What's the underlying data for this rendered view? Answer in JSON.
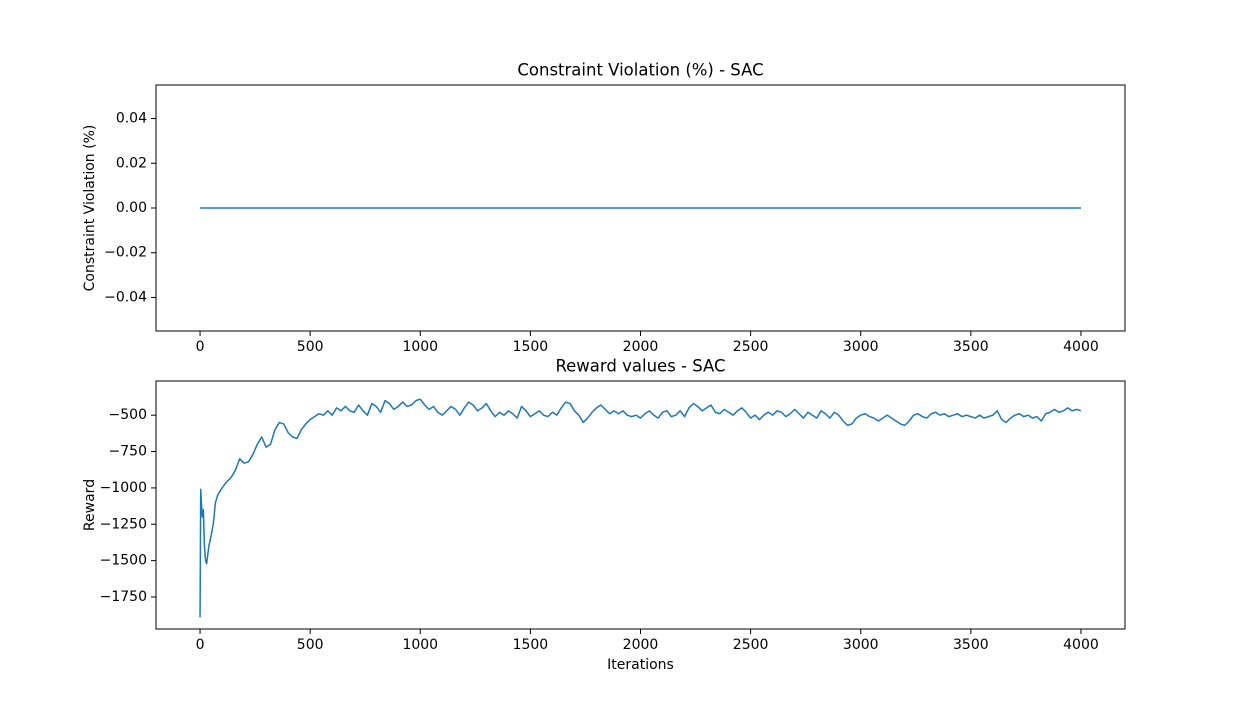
{
  "chart_data": [
    {
      "type": "line",
      "title": "Constraint Violation (%) - SAC",
      "ylabel": "Constraint Violation (%)",
      "x": [
        0,
        4000
      ],
      "values": [
        0,
        0
      ],
      "color": "#1f77b4",
      "xlim": [
        -200,
        4200
      ],
      "ylim": [
        -0.055,
        0.055
      ],
      "xticks": [
        0,
        500,
        1000,
        1500,
        2000,
        2500,
        3000,
        3500,
        4000
      ],
      "yticks": [
        {
          "value": -0.04,
          "label": "−0.04"
        },
        {
          "value": -0.02,
          "label": "−0.02"
        },
        {
          "value": 0,
          "label": "0.00"
        },
        0.02,
        0.04
      ]
    },
    {
      "type": "line",
      "title": "Reward values - SAC",
      "ylabel": "Reward",
      "xlabel": "Iterations",
      "color": "#1f77b4",
      "x": [
        0,
        3,
        10,
        15,
        20,
        25,
        30,
        40,
        50,
        60,
        70,
        80,
        100,
        120,
        140,
        160,
        180,
        200,
        220,
        240,
        260,
        280,
        300,
        320,
        340,
        360,
        380,
        400,
        420,
        440,
        460,
        480,
        500,
        520,
        540,
        560,
        580,
        600,
        620,
        640,
        660,
        680,
        700,
        720,
        740,
        760,
        780,
        800,
        820,
        840,
        860,
        880,
        900,
        920,
        940,
        960,
        980,
        1000,
        1020,
        1040,
        1060,
        1080,
        1100,
        1120,
        1140,
        1160,
        1180,
        1200,
        1220,
        1240,
        1260,
        1280,
        1300,
        1320,
        1340,
        1360,
        1380,
        1400,
        1420,
        1440,
        1460,
        1480,
        1500,
        1520,
        1540,
        1560,
        1580,
        1600,
        1620,
        1640,
        1660,
        1680,
        1700,
        1720,
        1740,
        1760,
        1780,
        1800,
        1820,
        1840,
        1860,
        1880,
        1900,
        1920,
        1940,
        1960,
        1980,
        2000,
        2020,
        2040,
        2060,
        2080,
        2100,
        2120,
        2140,
        2160,
        2180,
        2200,
        2220,
        2240,
        2260,
        2280,
        2300,
        2320,
        2340,
        2360,
        2380,
        2400,
        2420,
        2440,
        2460,
        2480,
        2500,
        2520,
        2540,
        2560,
        2580,
        2600,
        2620,
        2640,
        2660,
        2680,
        2700,
        2720,
        2740,
        2760,
        2780,
        2800,
        2820,
        2840,
        2860,
        2880,
        2900,
        2920,
        2940,
        2960,
        2980,
        3000,
        3020,
        3040,
        3060,
        3080,
        3100,
        3120,
        3140,
        3160,
        3180,
        3200,
        3220,
        3240,
        3260,
        3280,
        3300,
        3320,
        3340,
        3360,
        3380,
        3400,
        3420,
        3440,
        3460,
        3480,
        3500,
        3520,
        3540,
        3560,
        3580,
        3600,
        3620,
        3640,
        3660,
        3680,
        3700,
        3720,
        3740,
        3760,
        3780,
        3800,
        3820,
        3840,
        3860,
        3880,
        3900,
        3920,
        3940,
        3960,
        3980,
        4000
      ],
      "values": [
        -1890,
        -1010,
        -1200,
        -1150,
        -1400,
        -1500,
        -1520,
        -1400,
        -1330,
        -1250,
        -1100,
        -1050,
        -1000,
        -960,
        -930,
        -880,
        -800,
        -830,
        -820,
        -770,
        -700,
        -650,
        -720,
        -700,
        -600,
        -550,
        -560,
        -620,
        -650,
        -660,
        -600,
        -560,
        -530,
        -510,
        -490,
        -500,
        -470,
        -500,
        -450,
        -470,
        -440,
        -470,
        -480,
        -430,
        -470,
        -500,
        -420,
        -440,
        -480,
        -400,
        -420,
        -460,
        -440,
        -410,
        -440,
        -430,
        -400,
        -390,
        -430,
        -460,
        -440,
        -480,
        -500,
        -470,
        -440,
        -460,
        -500,
        -450,
        -410,
        -430,
        -470,
        -450,
        -420,
        -470,
        -510,
        -480,
        -500,
        -470,
        -490,
        -520,
        -440,
        -470,
        -510,
        -490,
        -470,
        -500,
        -510,
        -480,
        -500,
        -450,
        -410,
        -420,
        -470,
        -500,
        -550,
        -520,
        -480,
        -450,
        -430,
        -460,
        -490,
        -470,
        -490,
        -470,
        -500,
        -510,
        -500,
        -520,
        -490,
        -470,
        -500,
        -520,
        -480,
        -470,
        -510,
        -500,
        -470,
        -510,
        -450,
        -420,
        -440,
        -470,
        -450,
        -430,
        -480,
        -490,
        -460,
        -480,
        -500,
        -470,
        -450,
        -480,
        -520,
        -500,
        -530,
        -500,
        -480,
        -500,
        -470,
        -480,
        -510,
        -490,
        -460,
        -490,
        -520,
        -480,
        -500,
        -520,
        -470,
        -490,
        -520,
        -480,
        -500,
        -540,
        -570,
        -560,
        -520,
        -500,
        -490,
        -510,
        -520,
        -540,
        -520,
        -500,
        -520,
        -540,
        -560,
        -570,
        -540,
        -500,
        -490,
        -510,
        -520,
        -490,
        -480,
        -500,
        -490,
        -510,
        -500,
        -490,
        -510,
        -500,
        -510,
        -520,
        -500,
        -520,
        -510,
        -500,
        -470,
        -530,
        -550,
        -520,
        -500,
        -490,
        -510,
        -500,
        -520,
        -510,
        -540,
        -490,
        -480,
        -460,
        -480,
        -470,
        -450,
        -470,
        -460,
        -470
      ],
      "xlim": [
        -200,
        4200
      ],
      "ylim": [
        -1970,
        -265
      ],
      "xticks": [
        0,
        500,
        1000,
        1500,
        2000,
        2500,
        3000,
        3500,
        4000
      ],
      "yticks": [
        {
          "value": -1750,
          "label": "−1750"
        },
        {
          "value": -1500,
          "label": "−1500"
        },
        {
          "value": -1250,
          "label": "−1250"
        },
        {
          "value": -1000,
          "label": "−1000"
        },
        {
          "value": -750,
          "label": "−750"
        },
        {
          "value": -500,
          "label": "−500"
        }
      ]
    }
  ]
}
